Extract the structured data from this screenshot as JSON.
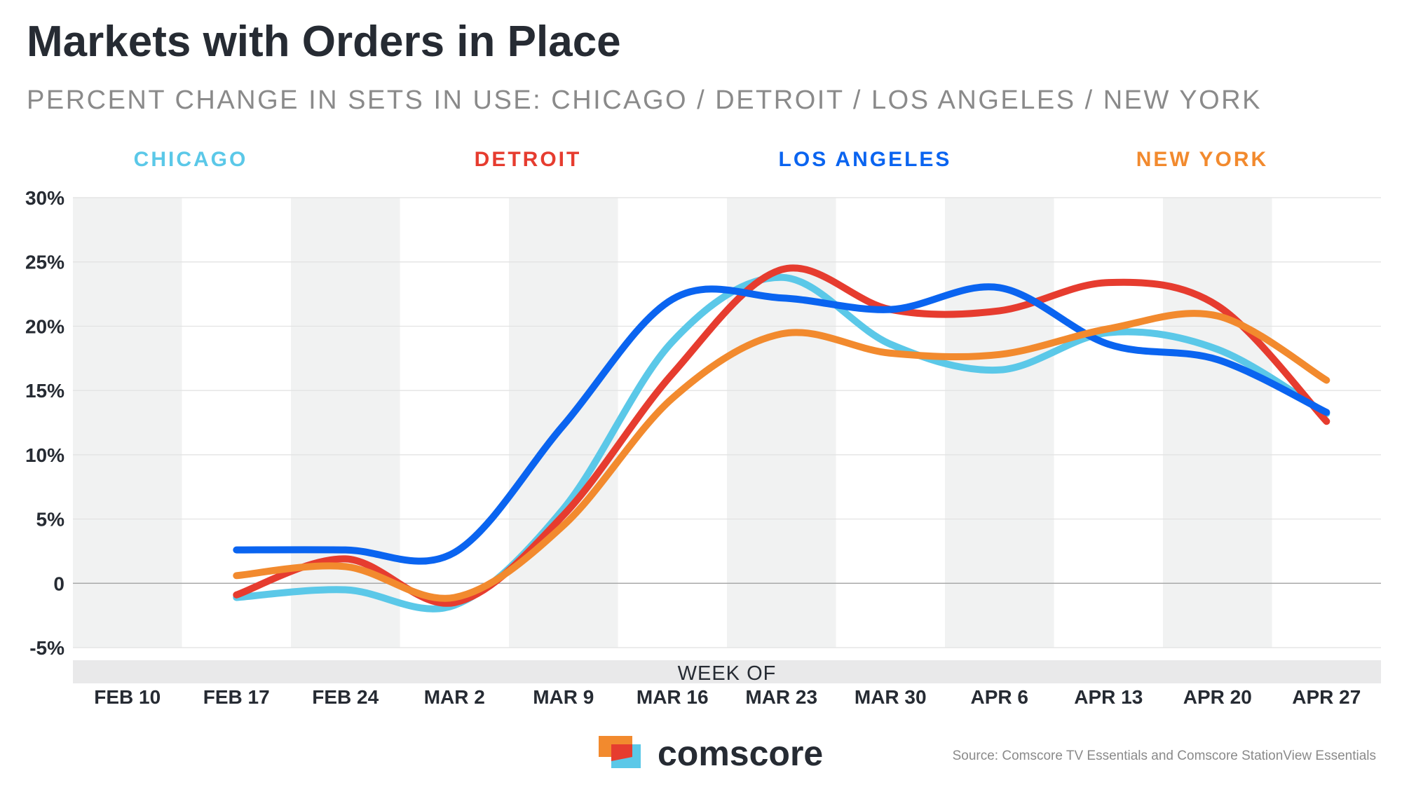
{
  "header": {
    "title": "Markets with Orders in Place",
    "subtitle": "PERCENT CHANGE IN SETS IN USE: CHICAGO / DETROIT / LOS ANGELES / NEW YORK"
  },
  "footer": {
    "brand": "comscore",
    "source": "Source: Comscore TV Essentials and Comscore StationView Essentials"
  },
  "colors": {
    "chicago": "#5bc8e8",
    "detroit": "#e63c2f",
    "los_angeles": "#0a64f0",
    "new_york": "#f28a2e",
    "band": "#f1f2f2",
    "grid": "#e1e1e1",
    "zero_line": "#a9a9a9",
    "text": "#262b33",
    "muted": "#8a8a8a"
  },
  "chart_data": {
    "type": "line",
    "title": "Markets with Orders in Place",
    "subtitle": "PERCENT CHANGE IN SETS IN USE: CHICAGO / DETROIT / LOS ANGELES / NEW YORK",
    "xlabel": "WEEK OF",
    "ylabel": "",
    "categories": [
      "FEB 10",
      "FEB 17",
      "FEB 24",
      "MAR 2",
      "MAR 9",
      "MAR 16",
      "MAR 23",
      "MAR 30",
      "APR 6",
      "APR 13",
      "APR 20",
      "APR 27"
    ],
    "ylim": [
      -5,
      30
    ],
    "yticks": [
      30,
      25,
      20,
      15,
      10,
      5,
      0,
      -5
    ],
    "ytick_labels": [
      "30%",
      "25%",
      "20%",
      "15%",
      "10%",
      "5%",
      "0",
      "-5%"
    ],
    "grid": true,
    "legend_position": "top",
    "series": [
      {
        "key": "chicago",
        "name": "CHICAGO",
        "color": "#5bc8e8",
        "values": [
          null,
          -1.1,
          -0.5,
          -1.7,
          5.8,
          18.8,
          23.8,
          18.6,
          16.6,
          19.5,
          18.2,
          13.2
        ]
      },
      {
        "key": "detroit",
        "name": "DETROIT",
        "color": "#e63c2f",
        "values": [
          null,
          -0.9,
          1.9,
          -1.5,
          5.3,
          16.3,
          24.4,
          21.3,
          21.2,
          23.4,
          21.6,
          12.6
        ]
      },
      {
        "key": "los_angeles",
        "name": "LOS ANGELES",
        "color": "#0a64f0",
        "values": [
          null,
          2.6,
          2.6,
          2.4,
          12.3,
          22.1,
          22.2,
          21.3,
          23.0,
          18.6,
          17.4,
          13.3
        ]
      },
      {
        "key": "new_york",
        "name": "NEW YORK",
        "color": "#f28a2e",
        "values": [
          null,
          0.6,
          1.3,
          -1.1,
          4.5,
          14.4,
          19.4,
          17.9,
          17.8,
          19.8,
          20.8,
          15.8
        ]
      }
    ]
  }
}
